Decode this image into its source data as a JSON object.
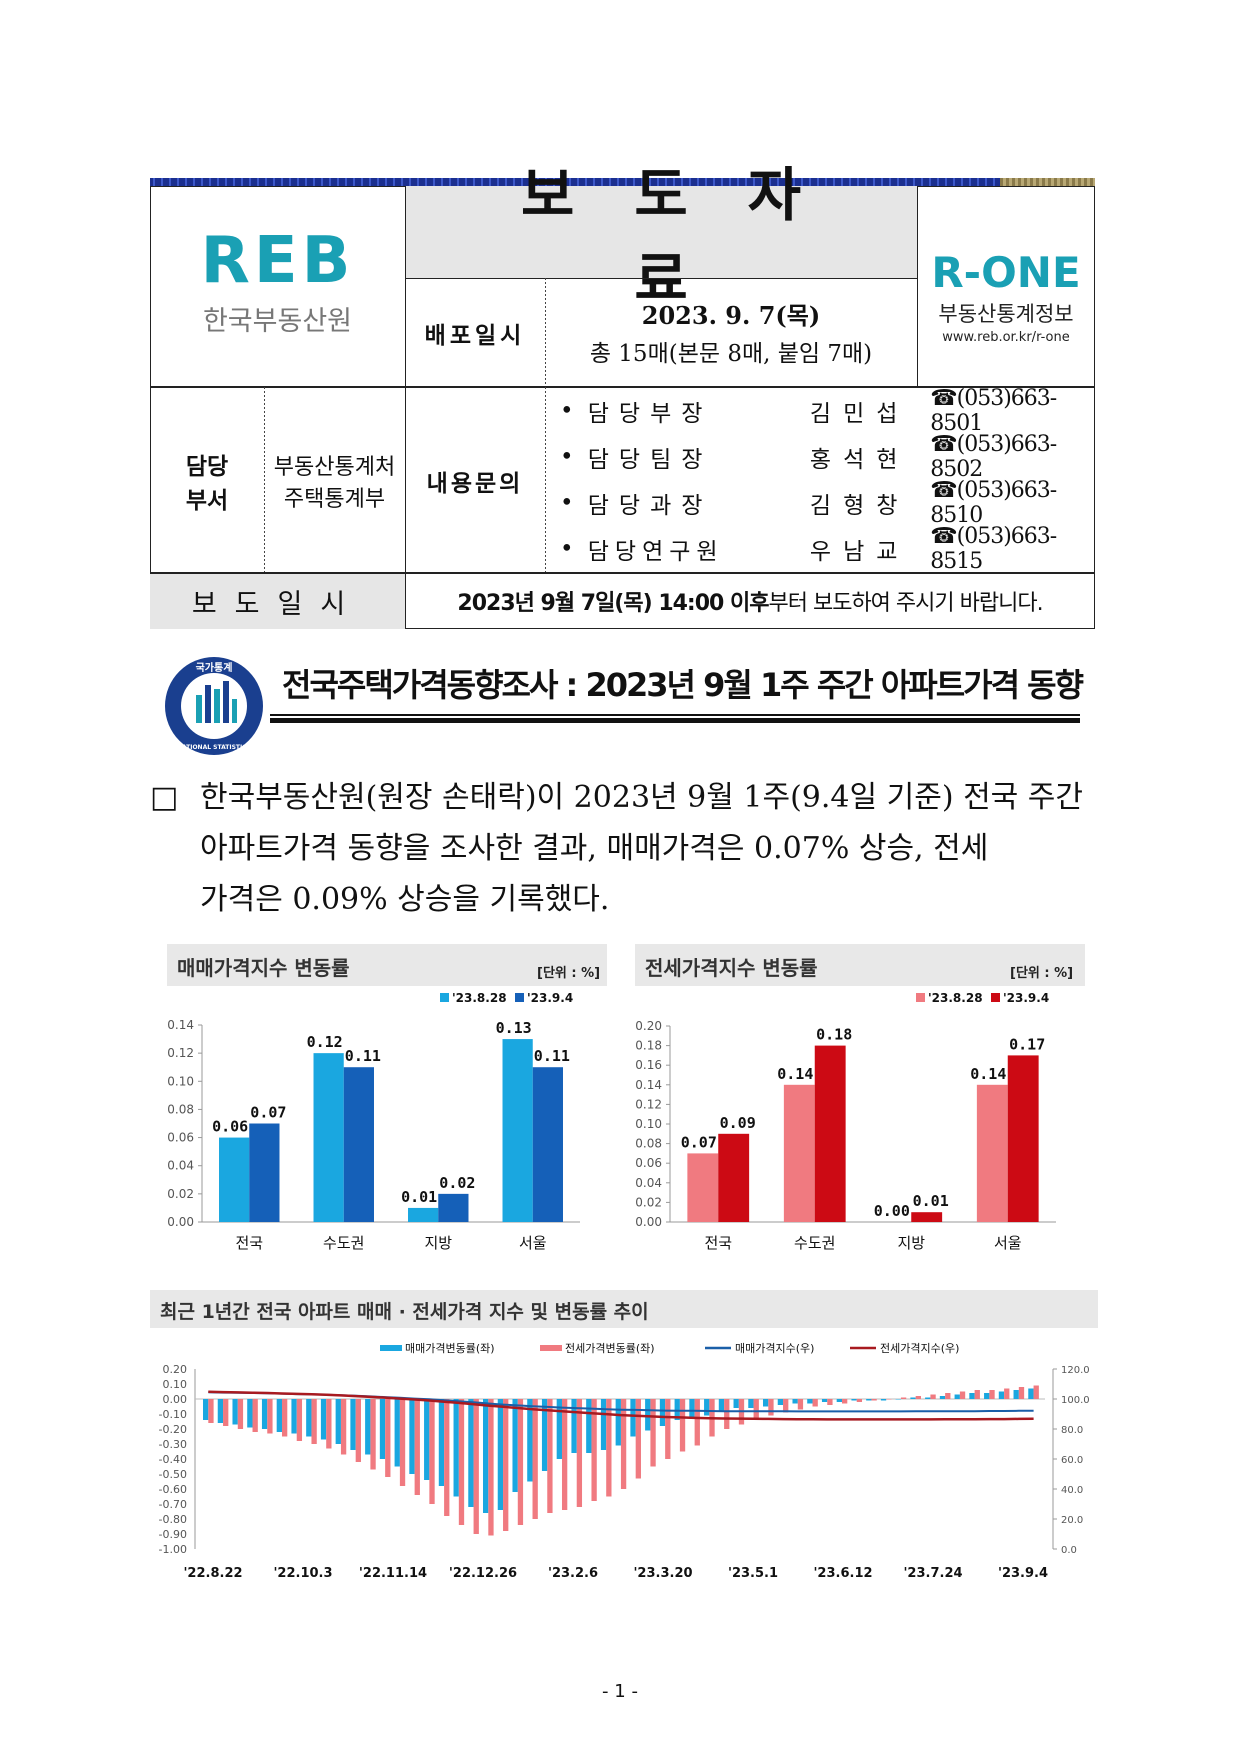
{
  "header": {
    "reb_logo_text": "REB",
    "reb_org_name": "한국부동산원",
    "doc_type": "보도자료",
    "release_label": "배포일시",
    "release_date": "2023. 9. 7(목)",
    "page_count": "총 15매(본문 8매, 붙임 7매)",
    "rone_logo_text": "R-ONE",
    "rone_name": "부동산통계정보",
    "rone_url": "www.reb.or.kr/r-one",
    "dept_label_1": "담당",
    "dept_label_2": "부서",
    "dept_name_1": "부동산통계처",
    "dept_name_2": "주택통계부",
    "inquiry_label": "내용문의",
    "contacts": [
      {
        "role": "담당부장",
        "name": "김민섭",
        "tel": "☎(053)663-8501"
      },
      {
        "role": "담당팀장",
        "name": "홍석현",
        "tel": "☎(053)663-8502"
      },
      {
        "role": "담당과장",
        "name": "김형창",
        "tel": "☎(053)663-8510"
      },
      {
        "role": "담당연구원",
        "name": "우남교",
        "tel": "☎(053)663-8515"
      }
    ],
    "embargo_label": "보도일시",
    "embargo_bold": "2023년 9월 7일(목) 14:00 이후",
    "embargo_rest": "부터 보도하여 주시기 바랍니다."
  },
  "title": {
    "stat_logo_top": "국가통계",
    "stat_logo_bottom": "NATIONAL STATISTICS",
    "text": "전국주택가격동향조사 : 2023년 9월 1주 주간 아파트가격 동향"
  },
  "body": {
    "bullet": "□",
    "line1": "한국부동산원(원장 손태락)이 2023년 9월 1주(9.4일 기준) 전국 주간",
    "line2": "아파트가격 동향을 조사한 결과, 매매가격은 0.07% 상승, 전세",
    "line3": "가격은 0.09% 상승을 기록했다."
  },
  "colors": {
    "sale_prev": "#1aa7e0",
    "sale_curr": "#1560b8",
    "jeonse_prev": "#f07a80",
    "jeonse_curr": "#cc0a14",
    "sale_index_line": "#1a5fa8",
    "jeonse_index_line": "#a81a20"
  },
  "chart_data": [
    {
      "type": "bar",
      "title": "매매가격지수 변동률",
      "unit": "[단위 : %]",
      "categories": [
        "전국",
        "수도권",
        "지방",
        "서울"
      ],
      "series": [
        {
          "name": "'23.8.28",
          "values": [
            0.06,
            0.12,
            0.01,
            0.13
          ]
        },
        {
          "name": "'23.9.4",
          "values": [
            0.07,
            0.11,
            0.02,
            0.11
          ]
        }
      ],
      "ylim": [
        0,
        0.14
      ],
      "yticks": [
        "0.00",
        "0.02",
        "0.04",
        "0.06",
        "0.08",
        "0.10",
        "0.12",
        "0.14"
      ],
      "labels": [
        [
          "0.06",
          "0.12",
          "0.01",
          "0.13"
        ],
        [
          "0.07",
          "0.11",
          "0.02",
          "0.11"
        ]
      ],
      "legend_position": "top-right"
    },
    {
      "type": "bar",
      "title": "전세가격지수 변동률",
      "unit": "[단위 : %]",
      "categories": [
        "전국",
        "수도권",
        "지방",
        "서울"
      ],
      "series": [
        {
          "name": "'23.8.28",
          "values": [
            0.07,
            0.14,
            0.0,
            0.14
          ]
        },
        {
          "name": "'23.9.4",
          "values": [
            0.09,
            0.18,
            0.01,
            0.17
          ]
        }
      ],
      "ylim": [
        0,
        0.2
      ],
      "yticks": [
        "0.00",
        "0.02",
        "0.04",
        "0.06",
        "0.08",
        "0.10",
        "0.12",
        "0.14",
        "0.16",
        "0.18",
        "0.20"
      ],
      "labels": [
        [
          "0.07",
          "0.14",
          "0.00",
          "0.14"
        ],
        [
          "0.09",
          "0.18",
          "0.01",
          "0.17"
        ]
      ],
      "legend_position": "top-right"
    },
    {
      "type": "bar",
      "title": "최근 1년간 전국 아파트 매매 · 전세가격 지수 및 변동률 추이",
      "legend": [
        "매매가격변동률(좌)",
        "전세가격변동률(좌)",
        "매매가격지수(우)",
        "전세가격지수(우)"
      ],
      "x_ticks": [
        "'22.8.22",
        "'22.10.3",
        "'22.11.14",
        "'22.12.26",
        "'23.2.6",
        "'23.3.20",
        "'23.5.1",
        "'23.6.12",
        "'23.7.24",
        "'23.9.4"
      ],
      "y_left_ticks": [
        "0.20",
        "0.10",
        "0.00",
        "-0.10",
        "-0.20",
        "-0.30",
        "-0.40",
        "-0.50",
        "-0.60",
        "-0.70",
        "-0.80",
        "-0.90",
        "-1.00"
      ],
      "y_right_ticks": [
        "120.0",
        "100.0",
        "80.0",
        "60.0",
        "40.0",
        "20.0",
        "0.0"
      ],
      "ylim_left": [
        -1.0,
        0.2
      ],
      "ylim_right": [
        0,
        120
      ],
      "sale_change": [
        -0.14,
        -0.16,
        -0.17,
        -0.19,
        -0.2,
        -0.22,
        -0.23,
        -0.25,
        -0.27,
        -0.3,
        -0.34,
        -0.37,
        -0.4,
        -0.45,
        -0.5,
        -0.54,
        -0.58,
        -0.65,
        -0.72,
        -0.76,
        -0.74,
        -0.62,
        -0.55,
        -0.48,
        -0.4,
        -0.36,
        -0.36,
        -0.34,
        -0.31,
        -0.25,
        -0.21,
        -0.18,
        -0.14,
        -0.12,
        -0.11,
        -0.08,
        -0.06,
        -0.06,
        -0.05,
        -0.04,
        -0.03,
        -0.03,
        -0.02,
        -0.02,
        -0.01,
        -0.01,
        -0.01,
        0.0,
        0.01,
        0.01,
        0.02,
        0.03,
        0.04,
        0.04,
        0.05,
        0.06,
        0.07
      ],
      "jeonse_change": [
        -0.16,
        -0.18,
        -0.2,
        -0.22,
        -0.23,
        -0.25,
        -0.28,
        -0.3,
        -0.33,
        -0.37,
        -0.42,
        -0.47,
        -0.52,
        -0.58,
        -0.64,
        -0.7,
        -0.78,
        -0.84,
        -0.9,
        -0.91,
        -0.88,
        -0.84,
        -0.8,
        -0.76,
        -0.74,
        -0.72,
        -0.68,
        -0.65,
        -0.6,
        -0.53,
        -0.45,
        -0.4,
        -0.35,
        -0.31,
        -0.25,
        -0.2,
        -0.17,
        -0.14,
        -0.11,
        -0.09,
        -0.07,
        -0.05,
        -0.04,
        -0.03,
        -0.02,
        -0.01,
        0.0,
        0.01,
        0.02,
        0.03,
        0.04,
        0.05,
        0.06,
        0.06,
        0.07,
        0.08,
        0.09
      ],
      "sale_index": [
        104.5,
        104.3,
        104.2,
        104.0,
        103.8,
        103.6,
        103.3,
        103.1,
        102.8,
        102.5,
        102.1,
        101.7,
        101.3,
        100.8,
        100.3,
        99.8,
        99.2,
        98.5,
        97.8,
        97.0,
        96.3,
        95.7,
        95.2,
        94.7,
        94.3,
        93.9,
        93.6,
        93.2,
        92.9,
        92.7,
        92.5,
        92.3,
        92.2,
        92.1,
        92.0,
        91.9,
        91.9,
        91.8,
        91.8,
        91.8,
        91.7,
        91.7,
        91.7,
        91.7,
        91.7,
        91.7,
        91.7,
        91.7,
        91.8,
        91.8,
        91.8,
        91.9,
        91.9,
        92.0,
        92.0,
        92.1,
        92.2
      ],
      "jeonse_index": [
        104.8,
        104.6,
        104.4,
        104.2,
        104.0,
        103.7,
        103.4,
        103.1,
        102.8,
        102.4,
        101.9,
        101.4,
        100.9,
        100.3,
        99.7,
        99.0,
        98.2,
        97.4,
        96.5,
        95.6,
        94.8,
        94.0,
        93.2,
        92.5,
        91.8,
        91.1,
        90.5,
        89.9,
        89.3,
        88.8,
        88.4,
        88.0,
        87.7,
        87.4,
        87.2,
        87.0,
        86.9,
        86.8,
        86.7,
        86.6,
        86.5,
        86.5,
        86.4,
        86.4,
        86.4,
        86.4,
        86.4,
        86.4,
        86.4,
        86.4,
        86.5,
        86.5,
        86.5,
        86.6,
        86.6,
        86.7,
        86.8
      ]
    }
  ],
  "footer": {
    "page_number": "- 1 -"
  }
}
